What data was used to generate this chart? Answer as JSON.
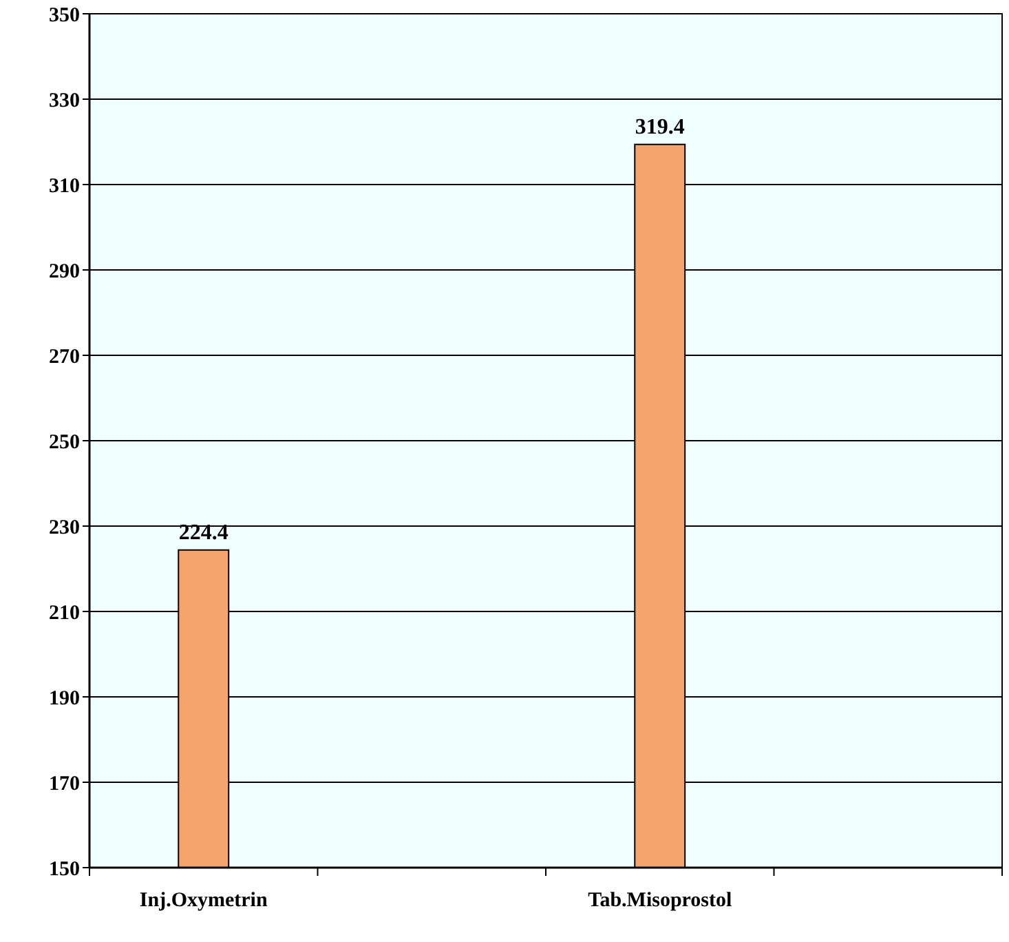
{
  "chart_data": {
    "type": "bar",
    "categories": [
      "Inj.Oxymetrin",
      null,
      "Tab.Misoprostol",
      null
    ],
    "values": [
      224.4,
      null,
      319.4,
      null
    ],
    "color": "#f4a46c",
    "ylim": [
      150,
      350
    ],
    "yticks": [
      150,
      170,
      190,
      210,
      230,
      250,
      270,
      290,
      310,
      330,
      350
    ],
    "grid": "y",
    "data_labels": true
  }
}
